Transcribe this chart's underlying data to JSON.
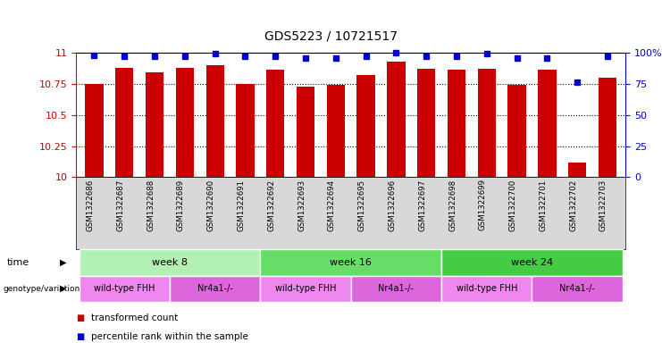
{
  "title": "GDS5223 / 10721517",
  "samples": [
    "GSM1322686",
    "GSM1322687",
    "GSM1322688",
    "GSM1322689",
    "GSM1322690",
    "GSM1322691",
    "GSM1322692",
    "GSM1322693",
    "GSM1322694",
    "GSM1322695",
    "GSM1322696",
    "GSM1322697",
    "GSM1322698",
    "GSM1322699",
    "GSM1322700",
    "GSM1322701",
    "GSM1322702",
    "GSM1322703"
  ],
  "red_values": [
    10.75,
    10.88,
    10.84,
    10.88,
    10.9,
    10.75,
    10.86,
    10.73,
    10.74,
    10.82,
    10.93,
    10.87,
    10.86,
    10.87,
    10.74,
    10.86,
    10.12,
    10.8
  ],
  "blue_values": [
    98,
    97,
    97,
    97,
    99,
    97,
    97,
    96,
    96,
    97,
    100,
    97,
    97,
    99,
    96,
    96,
    76,
    97
  ],
  "ymin": 10,
  "ymax": 11,
  "yticks": [
    10,
    10.25,
    10.5,
    10.75,
    11
  ],
  "y2min": 0,
  "y2max": 100,
  "y2ticks": [
    0,
    25,
    50,
    75,
    100
  ],
  "bar_color": "#cc0000",
  "dot_color": "#0000cc",
  "time_groups": [
    {
      "label": "week 8",
      "start": 0,
      "end": 5,
      "color": "#b3f0b3"
    },
    {
      "label": "week 16",
      "start": 6,
      "end": 11,
      "color": "#66dd66"
    },
    {
      "label": "week 24",
      "start": 12,
      "end": 17,
      "color": "#44cc44"
    }
  ],
  "genotype_groups": [
    {
      "label": "wild-type FHH",
      "start": 0,
      "end": 2,
      "color": "#ee88ee"
    },
    {
      "label": "Nr4a1-/-",
      "start": 3,
      "end": 5,
      "color": "#dd66dd"
    },
    {
      "label": "wild-type FHH",
      "start": 6,
      "end": 8,
      "color": "#ee88ee"
    },
    {
      "label": "Nr4a1-/-",
      "start": 9,
      "end": 11,
      "color": "#dd66dd"
    },
    {
      "label": "wild-type FHH",
      "start": 12,
      "end": 14,
      "color": "#ee88ee"
    },
    {
      "label": "Nr4a1-/-",
      "start": 15,
      "end": 17,
      "color": "#dd66dd"
    }
  ],
  "time_label": "time",
  "genotype_label": "genotype/variation",
  "legend_red": "transformed count",
  "legend_blue": "percentile rank within the sample",
  "sample_bg_color": "#d8d8d8"
}
